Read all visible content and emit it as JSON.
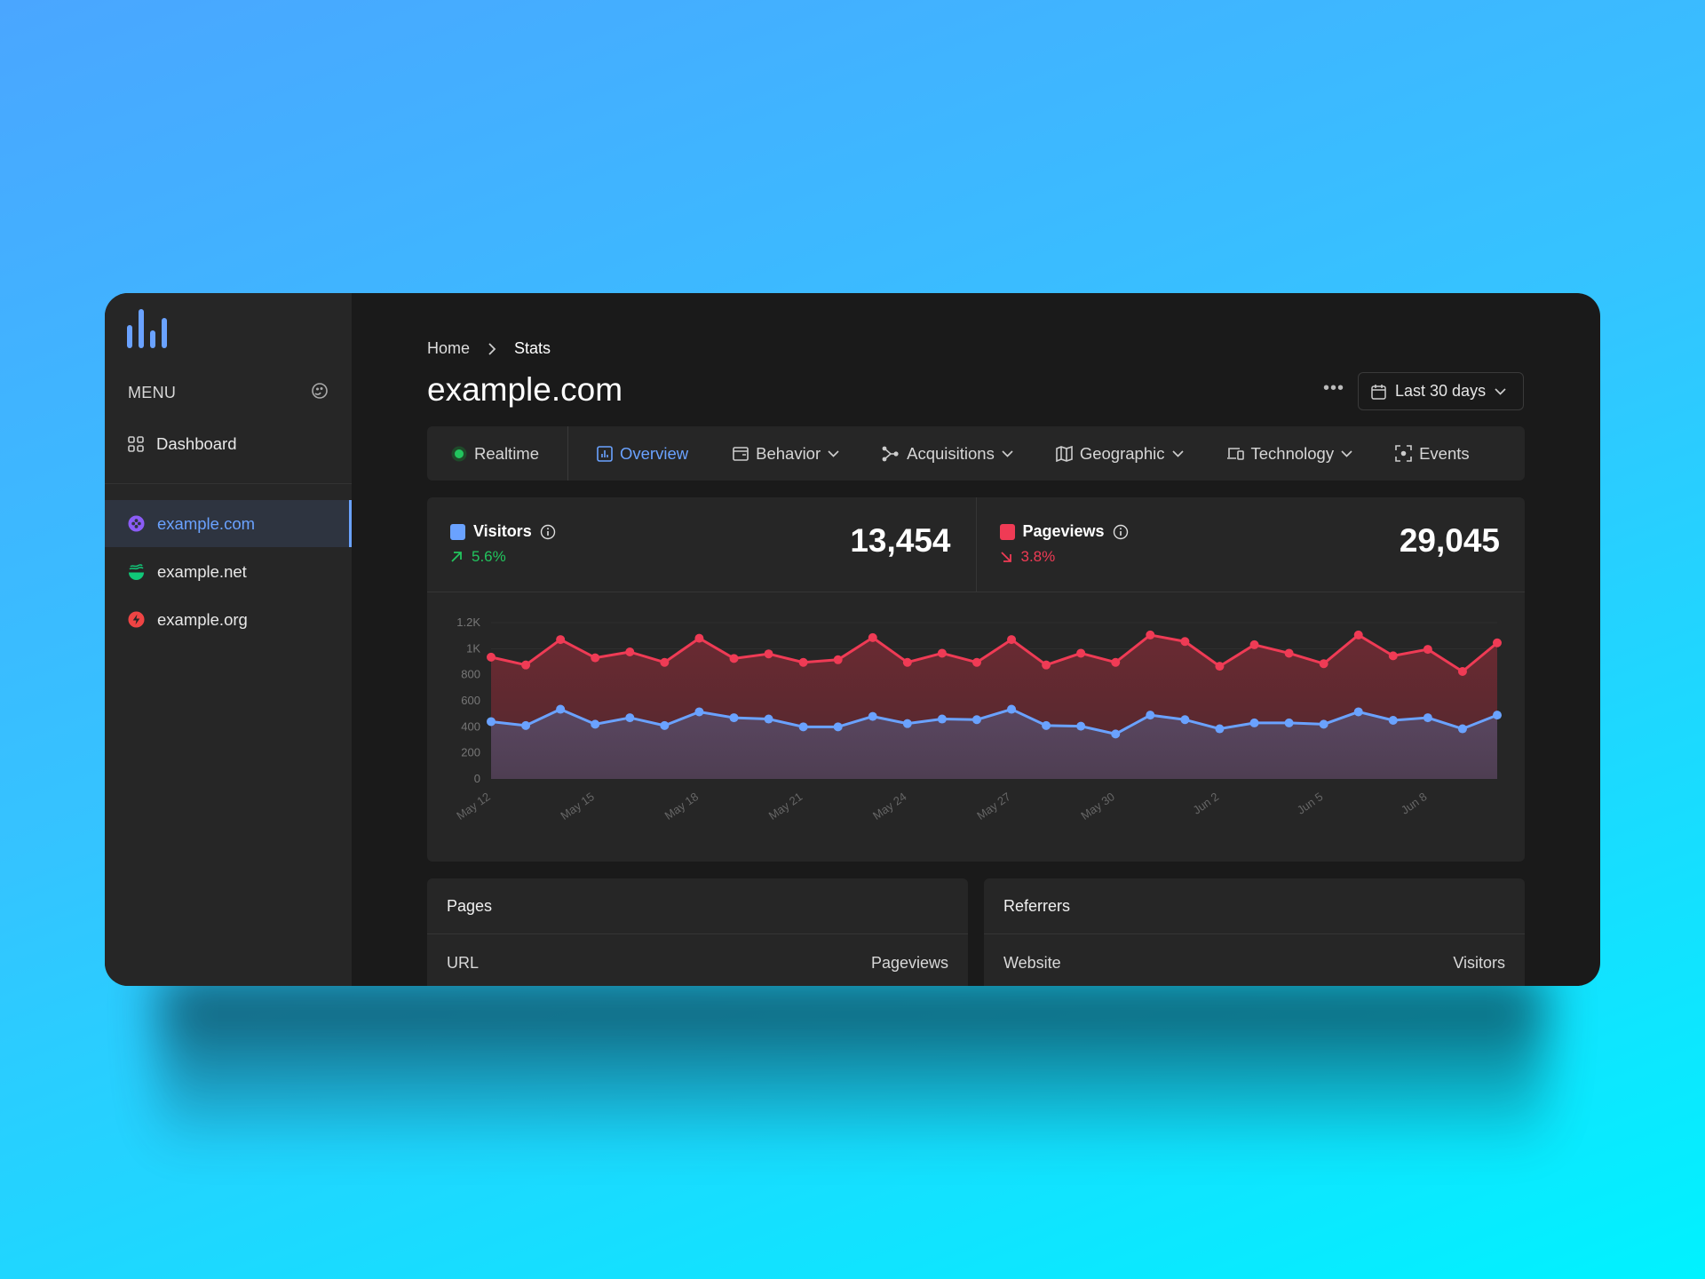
{
  "sidebar": {
    "menu_label": "MENU",
    "dashboard": "Dashboard",
    "sites": [
      {
        "label": "example.com",
        "icon": "purple-dots-icon",
        "color": "#8b5cf6",
        "active": true
      },
      {
        "label": "example.net",
        "icon": "green-waves-icon",
        "color": "#22c55e"
      },
      {
        "label": "example.org",
        "icon": "red-bolt-icon",
        "color": "#ef4444"
      }
    ]
  },
  "header": {
    "breadcrumb": [
      "Home",
      "Stats"
    ],
    "title": "example.com",
    "date_range": "Last 30 days"
  },
  "tabs": [
    {
      "label": "Realtime"
    },
    {
      "label": "Overview",
      "active": true
    },
    {
      "label": "Behavior"
    },
    {
      "label": "Acquisitions"
    },
    {
      "label": "Geographic"
    },
    {
      "label": "Technology"
    },
    {
      "label": "Events"
    }
  ],
  "stats": {
    "visitors": {
      "label": "Visitors",
      "value": "13,454",
      "change": "5.6%",
      "trend": "up",
      "color": "#6aa2ff"
    },
    "pageviews": {
      "label": "Pageviews",
      "value": "29,045",
      "change": "3.8%",
      "trend": "down",
      "color": "#ef3b55"
    }
  },
  "colors": {
    "accent": "#6aa2ff",
    "up": "#22c55e",
    "down": "#ef3b55"
  },
  "chart_data": {
    "type": "area",
    "x": [
      "May 12",
      "May 13",
      "May 14",
      "May 15",
      "May 16",
      "May 17",
      "May 18",
      "May 19",
      "May 20",
      "May 21",
      "May 22",
      "May 23",
      "May 24",
      "May 25",
      "May 26",
      "May 27",
      "May 28",
      "May 29",
      "May 30",
      "May 31",
      "Jun 1",
      "Jun 2",
      "Jun 3",
      "Jun 4",
      "Jun 5",
      "Jun 6",
      "Jun 7",
      "Jun 8",
      "Jun 9",
      "Jun 10"
    ],
    "x_tick_labels": [
      "May 12",
      "May 15",
      "May 18",
      "May 21",
      "May 24",
      "May 27",
      "May 30",
      "Jun 2",
      "Jun 5",
      "Jun 8"
    ],
    "y_tick_labels": [
      "0",
      "200",
      "400",
      "600",
      "800",
      "1K",
      "1.2K"
    ],
    "ylim": [
      0,
      1200
    ],
    "grid": true,
    "series": [
      {
        "name": "Pageviews",
        "color": "#ef3b55",
        "values": [
          935,
          875,
          1070,
          930,
          975,
          895,
          1080,
          925,
          960,
          895,
          915,
          1085,
          895,
          965,
          895,
          1070,
          875,
          965,
          895,
          1105,
          1055,
          865,
          1030,
          965,
          885,
          1105,
          945,
          995,
          825,
          1045
        ]
      },
      {
        "name": "Visitors",
        "color": "#6aa2ff",
        "values": [
          440,
          410,
          535,
          420,
          470,
          410,
          515,
          470,
          460,
          400,
          400,
          480,
          425,
          460,
          455,
          535,
          410,
          405,
          345,
          490,
          455,
          385,
          430,
          430,
          420,
          515,
          450,
          470,
          385,
          490
        ]
      }
    ]
  },
  "panels": [
    {
      "title": "Pages",
      "col1": "URL",
      "col2": "Pageviews"
    },
    {
      "title": "Referrers",
      "col1": "Website",
      "col2": "Visitors"
    }
  ]
}
